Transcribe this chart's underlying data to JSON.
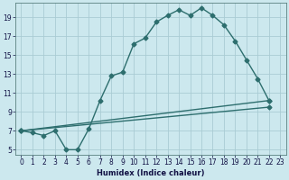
{
  "xlabel": "Humidex (Indice chaleur)",
  "ylabel": "",
  "bg_color": "#cce8ee",
  "grid_color": "#aaccd4",
  "line_color": "#2d6e6e",
  "xlim": [
    -0.5,
    23.5
  ],
  "ylim": [
    4.5,
    20.5
  ],
  "xticks": [
    0,
    1,
    2,
    3,
    4,
    5,
    6,
    7,
    8,
    9,
    10,
    11,
    12,
    13,
    14,
    15,
    16,
    17,
    18,
    19,
    20,
    21,
    22,
    23
  ],
  "yticks": [
    5,
    7,
    9,
    11,
    13,
    15,
    17,
    19
  ],
  "line1_x": [
    0,
    1,
    2,
    3,
    4,
    5,
    6,
    7,
    8,
    9,
    10,
    11,
    12,
    13,
    14,
    15,
    16,
    17,
    18,
    19,
    20,
    21,
    22
  ],
  "line1_y": [
    7.0,
    6.8,
    6.5,
    7.0,
    5.0,
    5.0,
    7.2,
    10.2,
    12.8,
    13.2,
    16.2,
    16.8,
    18.5,
    19.2,
    19.8,
    19.2,
    20.0,
    19.2,
    18.2,
    16.5,
    14.5,
    12.5,
    10.2
  ],
  "line2_x": [
    0,
    22
  ],
  "line2_y": [
    7.0,
    10.2
  ],
  "line3_x": [
    0,
    22
  ],
  "line3_y": [
    7.0,
    9.5
  ],
  "marker_style": "D",
  "marker_size": 2.5,
  "line_width": 1.0,
  "xlabel_fontsize": 6,
  "xlabel_fontweight": "bold",
  "tick_fontsize": 5.5,
  "tick_color": "#111144",
  "spine_color": "#5a8080"
}
